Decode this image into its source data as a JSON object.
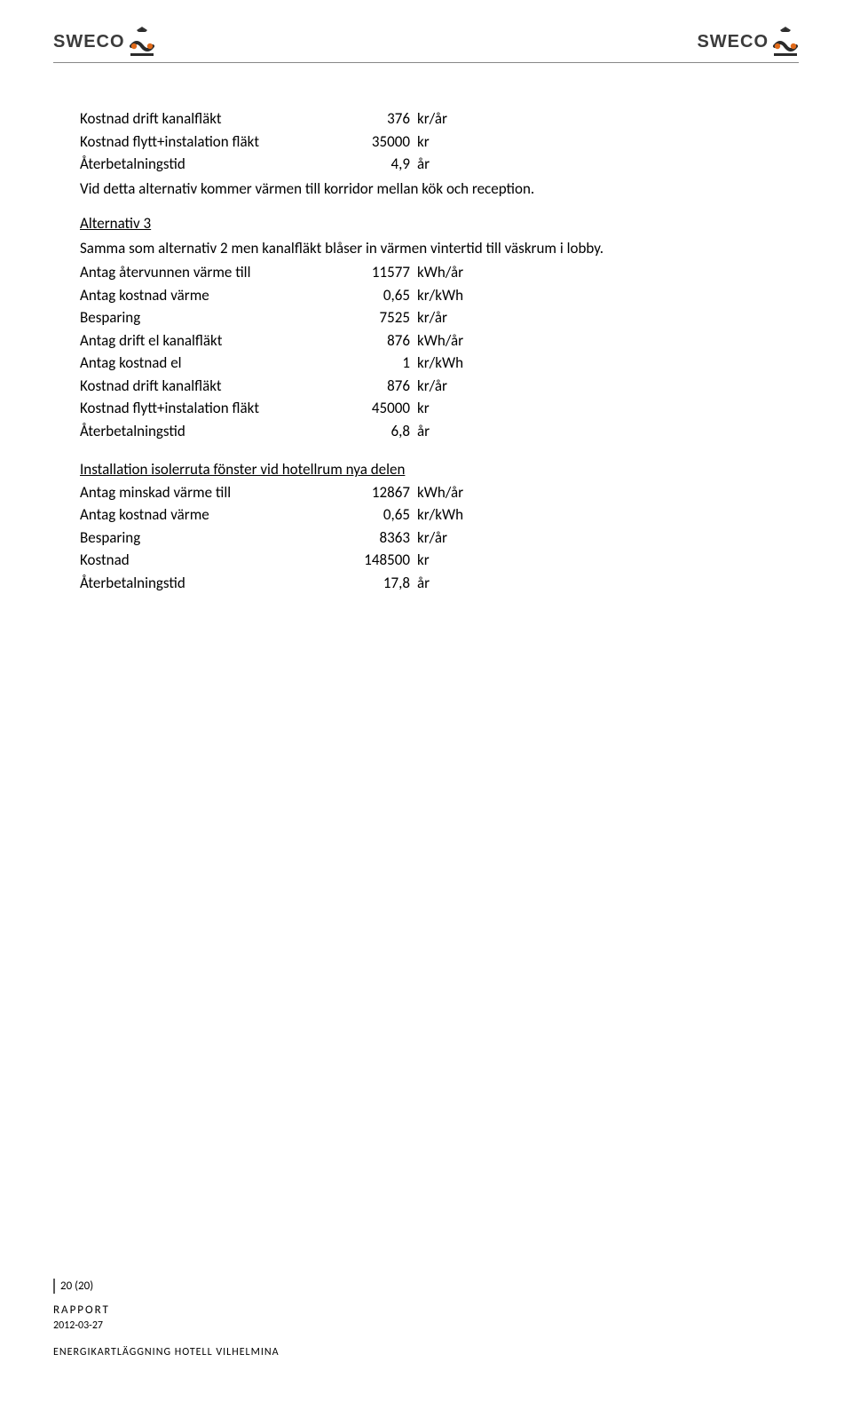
{
  "brand": "SWECO",
  "section1": {
    "rows": [
      {
        "label": "Kostnad drift kanalfläkt",
        "value": "376",
        "unit": "kr/år"
      },
      {
        "label": "Kostnad flytt+instalation fläkt",
        "value": "35000",
        "unit": "kr"
      },
      {
        "label": "Återbetalningstid",
        "value": "4,9",
        "unit": "år"
      }
    ],
    "note": "Vid detta alternativ kommer värmen till korridor mellan kök och reception."
  },
  "section2": {
    "heading": "Alternativ 3",
    "intro": "Samma som alternativ 2 men kanalfläkt blåser in värmen vintertid till väskrum i lobby.",
    "rows": [
      {
        "label": "Antag återvunnen värme till",
        "value": "11577",
        "unit": "kWh/år"
      },
      {
        "label": "Antag kostnad värme",
        "value": "0,65",
        "unit": "kr/kWh"
      },
      {
        "label": "Besparing",
        "value": "7525",
        "unit": "kr/år"
      },
      {
        "label": "Antag drift el kanalfläkt",
        "value": "876",
        "unit": "kWh/år"
      },
      {
        "label": "Antag kostnad el",
        "value": "1",
        "unit": "kr/kWh"
      },
      {
        "label": "Kostnad drift kanalfläkt",
        "value": "876",
        "unit": "kr/år"
      },
      {
        "label": "Kostnad flytt+instalation fläkt",
        "value": "45000",
        "unit": "kr"
      },
      {
        "label": "Återbetalningstid",
        "value": "6,8",
        "unit": "år"
      }
    ]
  },
  "section3": {
    "heading": "Installation isolerruta fönster vid hotellrum nya delen",
    "rows": [
      {
        "label": "Antag minskad värme till",
        "value": "12867",
        "unit": "kWh/år"
      },
      {
        "label": "Antag kostnad värme",
        "value": "0,65",
        "unit": "kr/kWh"
      },
      {
        "label": "Besparing",
        "value": "8363",
        "unit": "kr/år"
      },
      {
        "label": "Kostnad",
        "value": "148500",
        "unit": "kr"
      },
      {
        "label": "Återbetalningstid",
        "value": "17,8",
        "unit": "år"
      }
    ]
  },
  "footer": {
    "page": "20 (20)",
    "rapport": "RAPPORT",
    "date": "2012-03-27",
    "title": "ENERGIKARTLÄGGNING HOTELL VILHELMINA"
  },
  "colors": {
    "icon_dark": "#2b2b2b",
    "icon_orange": "#e06a1a",
    "text": "#000000",
    "rule": "#888888"
  }
}
